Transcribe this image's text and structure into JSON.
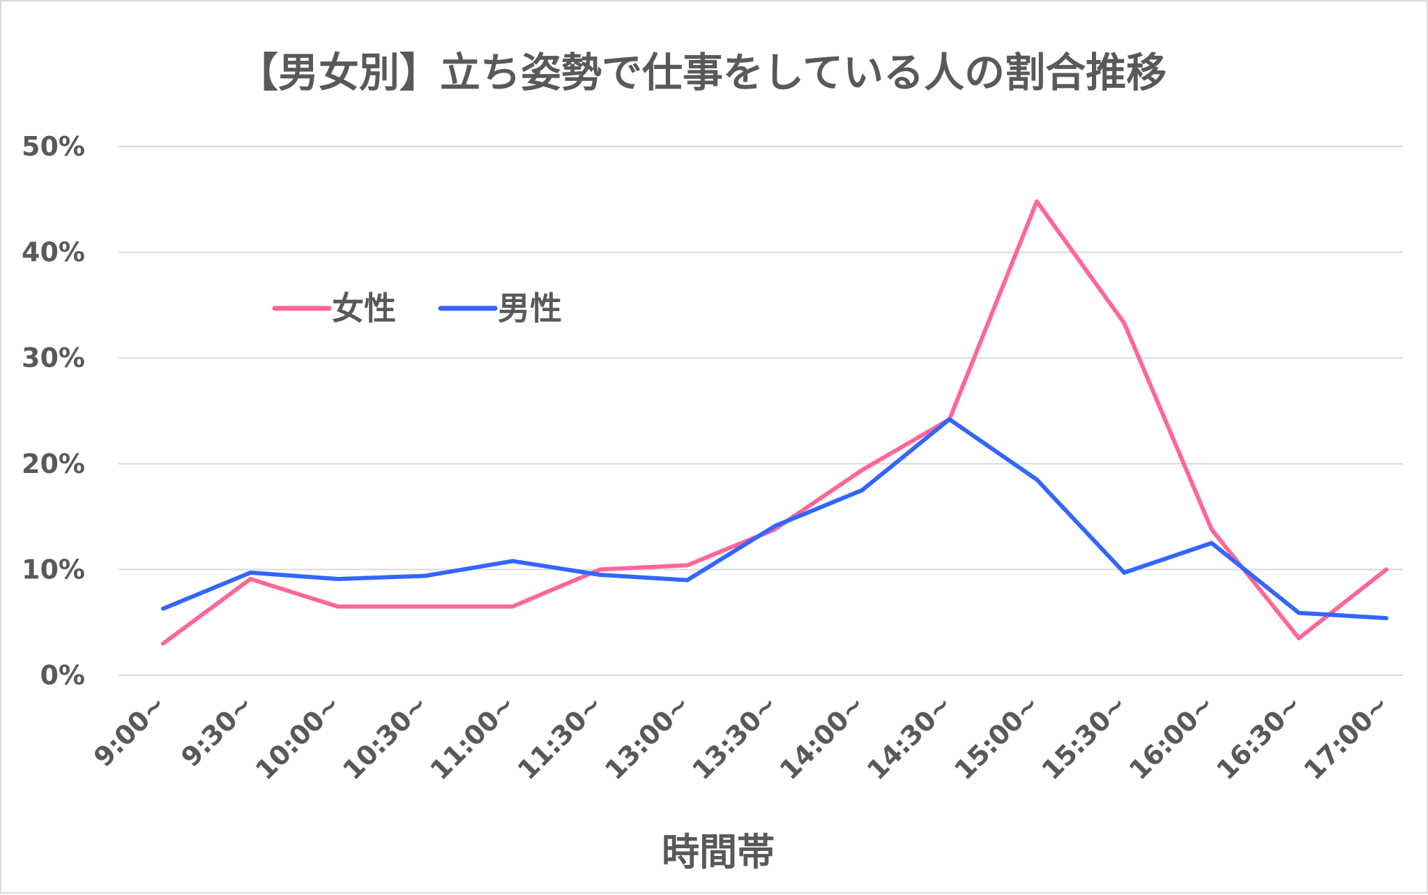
{
  "chart_data": {
    "type": "line",
    "title": "【男女別】立ち姿勢で仕事をしている人の割合推移",
    "xlabel": "時間帯",
    "ylabel": "",
    "categories": [
      "9:00~",
      "9:30~",
      "10:00~",
      "10:30~",
      "11:00~",
      "11:30~",
      "13:00~",
      "13:30~",
      "14:00~",
      "14:30~",
      "15:00~",
      "15:30~",
      "16:00~",
      "16:30~",
      "17:00~"
    ],
    "ylim": [
      0,
      50
    ],
    "yticks": [
      0,
      10,
      20,
      30,
      40,
      50
    ],
    "y_tick_labels": [
      "0%",
      "10%",
      "20%",
      "30%",
      "40%",
      "50%"
    ],
    "y_unit": "%",
    "grid": true,
    "legend_position": "top-left",
    "series": [
      {
        "name": "女性",
        "color": "#ff6699",
        "values": [
          3.0,
          9.1,
          6.5,
          6.5,
          6.5,
          10.0,
          10.4,
          13.8,
          19.4,
          24.2,
          44.8,
          33.3,
          13.8,
          3.5,
          10.0
        ]
      },
      {
        "name": "男性",
        "color": "#3366ff",
        "values": [
          6.3,
          9.7,
          9.1,
          9.4,
          10.8,
          9.5,
          9.0,
          14.1,
          17.5,
          24.2,
          18.5,
          9.7,
          12.5,
          5.9,
          5.4
        ]
      }
    ]
  }
}
